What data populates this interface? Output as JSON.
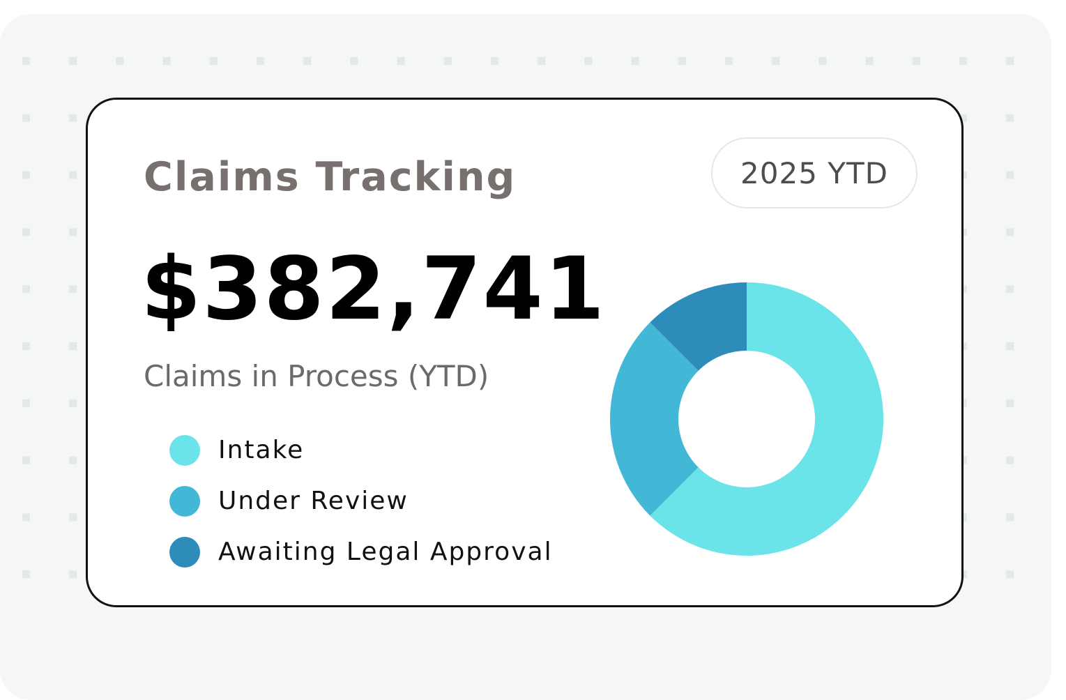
{
  "card": {
    "title": "Claims Tracking",
    "period_badge": "2025 YTD",
    "amount": "$382,741",
    "subtitle": "Claims in Process (YTD)"
  },
  "chart_data": {
    "type": "pie",
    "title": "",
    "categories": [
      "Intake",
      "Under Review",
      "Awaiting Legal Approval"
    ],
    "values": [
      62.5,
      25,
      12.5
    ],
    "colors": [
      "#6ae4e8",
      "#43b7d6",
      "#2e8cbb"
    ],
    "hole_fraction": 0.5
  },
  "legend": [
    {
      "label": "Intake",
      "color": "#6ae4e8"
    },
    {
      "label": "Under Review",
      "color": "#43b7d6"
    },
    {
      "label": "Awaiting Legal Approval",
      "color": "#2e8cbb"
    }
  ]
}
